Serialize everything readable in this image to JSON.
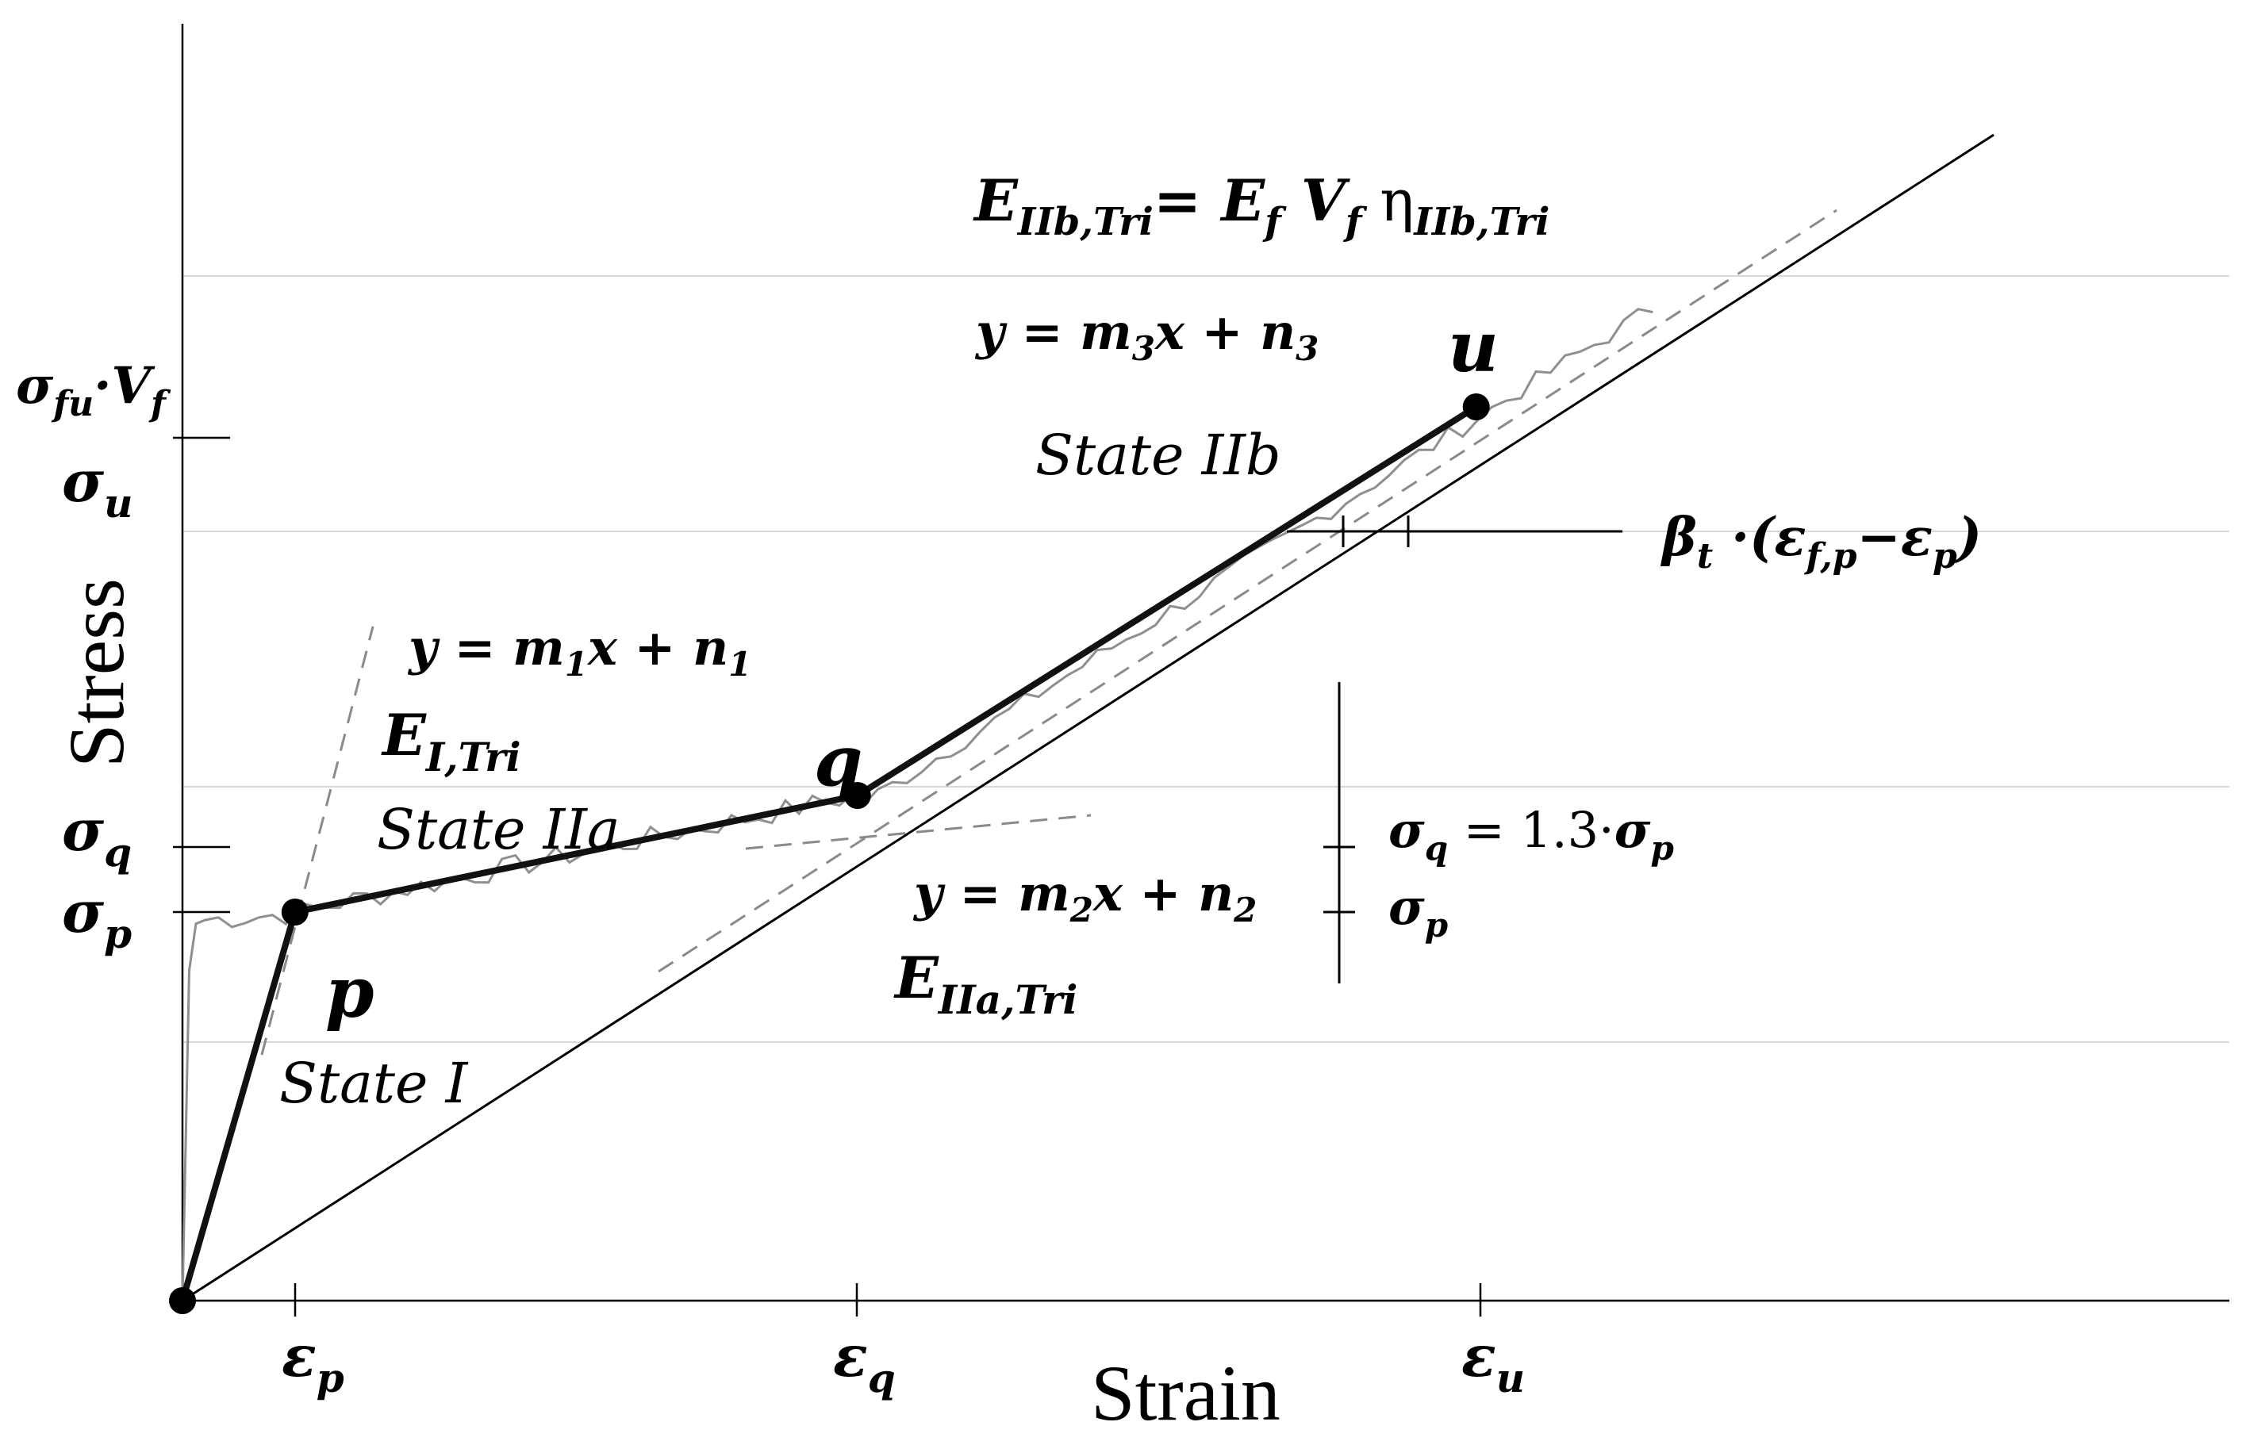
{
  "chart_data": {
    "type": "line",
    "xlabel": "Strain",
    "ylabel": "Stress",
    "grid": true,
    "x_ticks": [
      "ε_p",
      "ε_q",
      "ε_u"
    ],
    "y_ticks": [
      "σ_fu·V_f",
      "σ_u",
      "σ_q",
      "σ_p"
    ],
    "series": [
      {
        "role": "trilinear-model",
        "style": "bold-solid",
        "points": [
          {
            "label": "",
            "x": 0,
            "y": 0
          },
          {
            "label": "p",
            "x": 1,
            "y": 1
          },
          {
            "label": "q",
            "x": 6,
            "y": 1.3
          },
          {
            "label": "u",
            "x": 11.5,
            "y": 2.3
          }
        ]
      },
      {
        "role": "reference-line",
        "style": "thin-solid",
        "points": [
          {
            "x": 0,
            "y": 0
          },
          {
            "x": 16.1,
            "y": 3.0
          }
        ]
      }
    ],
    "point_labels": [
      "p",
      "q",
      "u"
    ],
    "state_labels": [
      "State I",
      "State IIa",
      "State IIb"
    ],
    "equations": {
      "state1_line": "y = m1x + n1",
      "state1_modulus": "E_I,Tri",
      "state2a_line": "y = m2x + n2",
      "state2a_modulus": "E_IIa,Tri",
      "state2b_line": "y = m3x + n3",
      "state2b_modulus": "E_IIb,Tri= E_f V_f η_IIb,Tri",
      "offset_note": "β_t ·(ε_f,p − ε_p)",
      "sigma_q_note": "σ_q = 1.3·σ_p",
      "sigma_p_note": "σ_p"
    }
  }
}
